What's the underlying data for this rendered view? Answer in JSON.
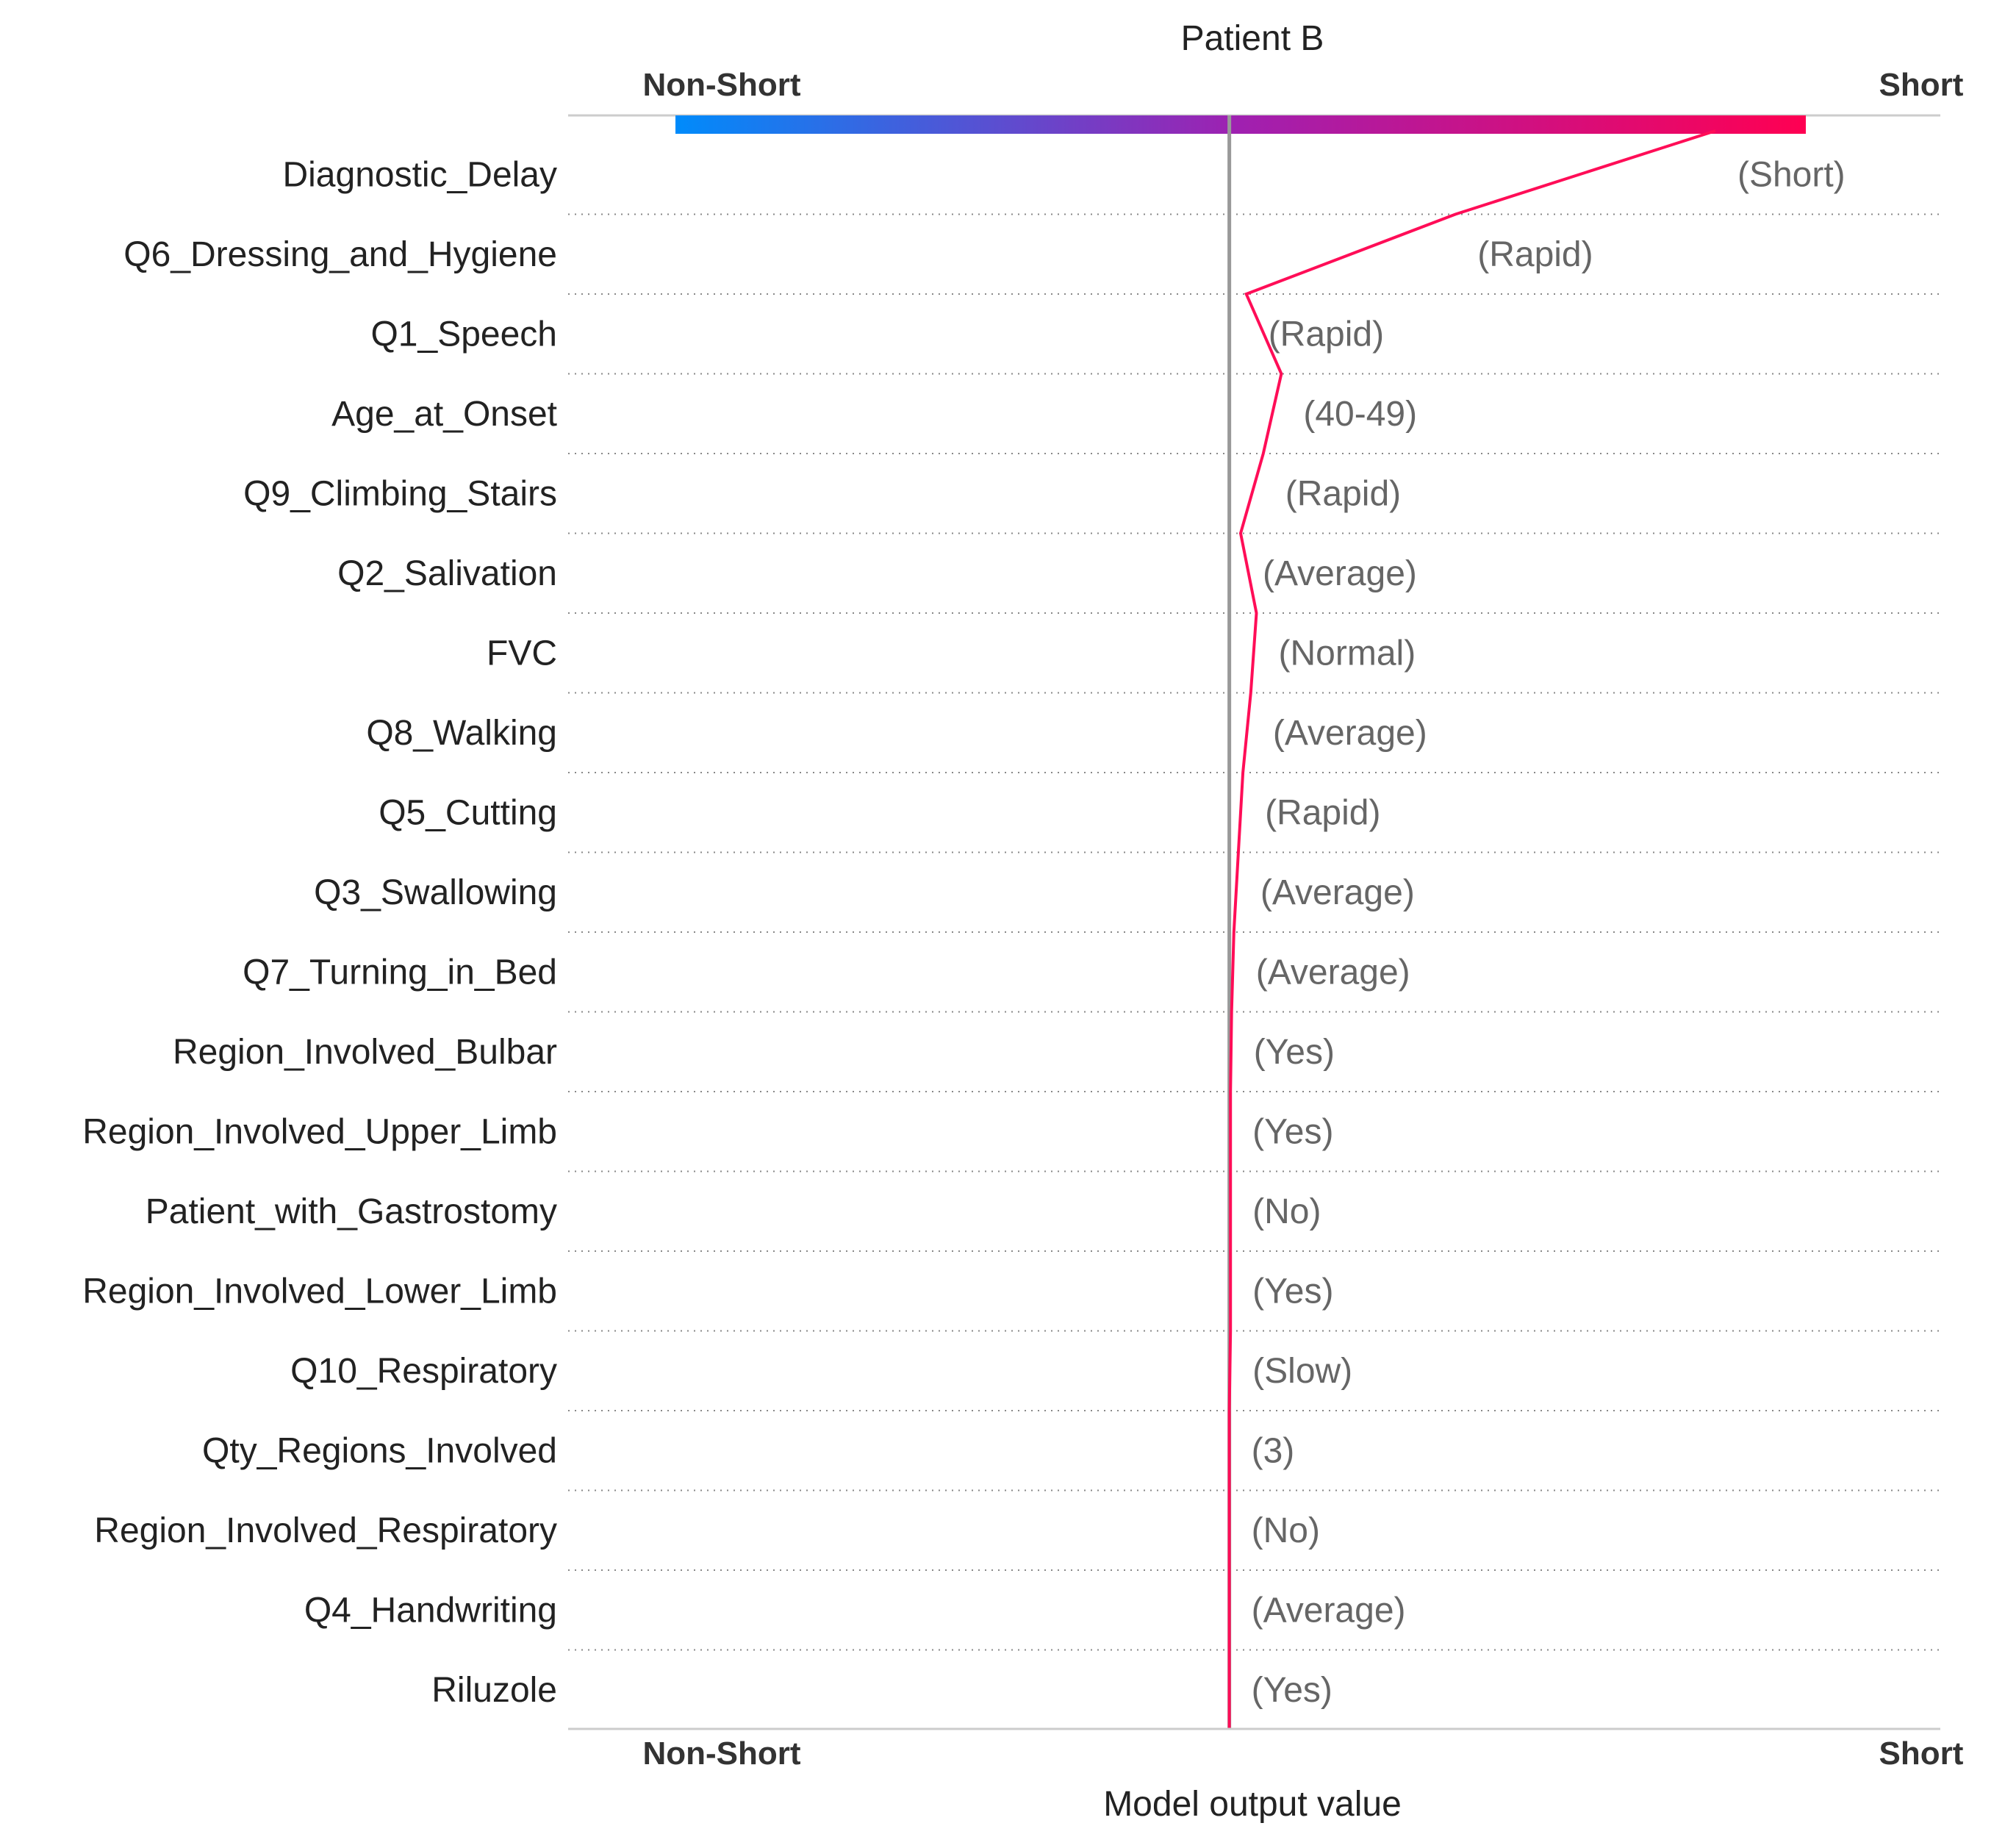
{
  "chart_data": {
    "type": "decision_plot",
    "title": "Patient B",
    "xlabel": "Model output value",
    "end_labels": {
      "left": "Non-Short",
      "right": "Short"
    },
    "xlim": [
      0,
      1
    ],
    "base_value": 0.49,
    "colors": {
      "line": "#ff0d57",
      "negative": "#008bfb",
      "positive": "#ff0052",
      "base_line": "#999999"
    },
    "grid": true,
    "features": [
      {
        "name": "Diagnostic_Delay",
        "value": "(Short)",
        "cumulative_output": 0.92
      },
      {
        "name": "Q6_Dressing_and_Hygiene",
        "value": "(Rapid)",
        "cumulative_output": 0.69
      },
      {
        "name": "Q1_Speech",
        "value": "(Rapid)",
        "cumulative_output": 0.505
      },
      {
        "name": "Age_at_Onset",
        "value": "(40-49)",
        "cumulative_output": 0.536
      },
      {
        "name": "Q9_Climbing_Stairs",
        "value": "(Rapid)",
        "cumulative_output": 0.52
      },
      {
        "name": "Q2_Salivation",
        "value": "(Average)",
        "cumulative_output": 0.5
      },
      {
        "name": "FVC",
        "value": "(Normal)",
        "cumulative_output": 0.514
      },
      {
        "name": "Q8_Walking",
        "value": "(Average)",
        "cumulative_output": 0.509
      },
      {
        "name": "Q5_Cutting",
        "value": "(Rapid)",
        "cumulative_output": 0.502
      },
      {
        "name": "Q3_Swallowing",
        "value": "(Average)",
        "cumulative_output": 0.498
      },
      {
        "name": "Q7_Turning_in_Bed",
        "value": "(Average)",
        "cumulative_output": 0.494
      },
      {
        "name": "Region_Involved_Bulbar",
        "value": "(Yes)",
        "cumulative_output": 0.492
      },
      {
        "name": "Region_Involved_Upper_Limb",
        "value": "(Yes)",
        "cumulative_output": 0.491
      },
      {
        "name": "Patient_with_Gastrostomy",
        "value": "(No)",
        "cumulative_output": 0.491
      },
      {
        "name": "Region_Involved_Lower_Limb",
        "value": "(Yes)",
        "cumulative_output": 0.491
      },
      {
        "name": "Q10_Respiratory",
        "value": "(Slow)",
        "cumulative_output": 0.491
      },
      {
        "name": "Qty_Regions_Involved",
        "value": "(3)",
        "cumulative_output": 0.49
      },
      {
        "name": "Region_Involved_Respiratory",
        "value": "(No)",
        "cumulative_output": 0.49
      },
      {
        "name": "Q4_Handwriting",
        "value": "(Average)",
        "cumulative_output": 0.49
      },
      {
        "name": "Riluzole",
        "value": "(Yes)",
        "cumulative_output": 0.49
      }
    ]
  }
}
